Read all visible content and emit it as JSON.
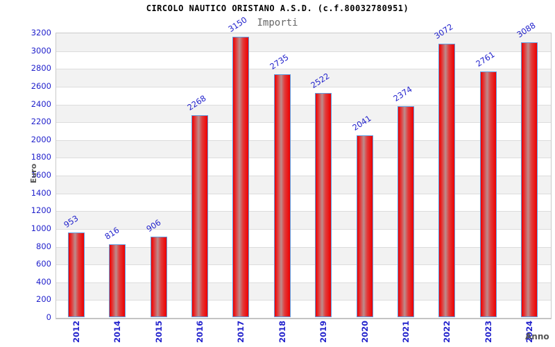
{
  "chart_data": {
    "type": "bar",
    "title": "CIRCOLO NAUTICO ORISTANO A.S.D. (c.f.80032780951)",
    "subtitle": "Importi",
    "xlabel": "Anno",
    "ylabel": "Euro",
    "categories": [
      "2012",
      "2014",
      "2015",
      "2016",
      "2017",
      "2018",
      "2019",
      "2020",
      "2021",
      "2022",
      "2023",
      "2024"
    ],
    "values": [
      953,
      816,
      906,
      2268,
      3150,
      2735,
      2522,
      2041,
      2374,
      3072,
      2761,
      3088
    ],
    "ylim": [
      0,
      3200
    ],
    "ytick_step": 200,
    "grid": true,
    "legend_position": "none",
    "bands_alternating": true,
    "colors": {
      "label_blue": "#2222cc",
      "bar_red": "#ee0000",
      "bar_mid_red": "#e13c3c",
      "bar_highlight": "#bd8c8c",
      "bar_border": "#5f9ce0",
      "axis_title_gray": "#555555",
      "band_gray": "#f2f2f2",
      "band_white": "#ffffff",
      "gridline": "#dcdcdc",
      "plot_border": "#c9c9c9"
    }
  }
}
